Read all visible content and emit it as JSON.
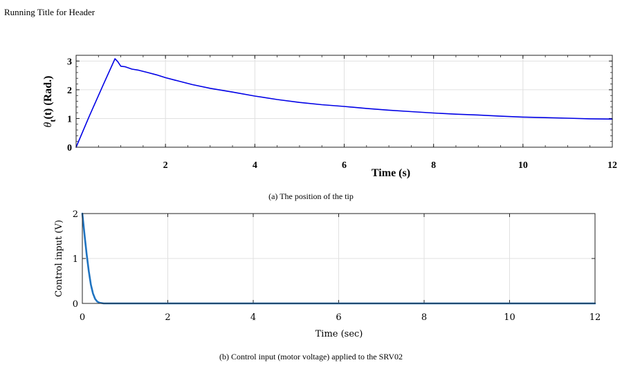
{
  "page": {
    "header": "Running Title for Header",
    "caption_a": "(a) The position of the tip",
    "caption_b": "(b) Control input (motor voltage) applied to the SRV02"
  },
  "colors": {
    "series_a": "#0000e6",
    "series_b": "#1f73c0",
    "grid": "#e0e0e0"
  },
  "chart_data": [
    {
      "type": "line",
      "xlabel": "Time (s)",
      "ylabel_main": "θ",
      "ylabel_sub": "t",
      "ylabel_rest": "(t) (Rad.)",
      "xlim": [
        0,
        12
      ],
      "ylim": [
        0,
        3.2
      ],
      "xticks": [
        2,
        4,
        6,
        8,
        10,
        12
      ],
      "yticks": [
        0,
        1,
        2,
        3
      ],
      "grid": true,
      "series": [
        {
          "x": [
            0,
            0.3,
            0.6,
            0.87,
            0.93,
            1.0,
            1.1,
            1.25,
            1.4,
            1.6,
            1.8,
            2.0,
            2.3,
            2.6,
            3.0,
            3.5,
            4.0,
            4.5,
            5.0,
            5.5,
            6.0,
            6.5,
            7.0,
            7.5,
            8.0,
            8.5,
            9.0,
            9.5,
            10.0,
            10.5,
            11.0,
            11.5,
            12.0
          ],
          "y": [
            0,
            1.1,
            2.15,
            3.08,
            2.98,
            2.82,
            2.8,
            2.72,
            2.68,
            2.6,
            2.52,
            2.42,
            2.3,
            2.18,
            2.05,
            1.92,
            1.78,
            1.66,
            1.56,
            1.48,
            1.42,
            1.35,
            1.29,
            1.24,
            1.19,
            1.15,
            1.12,
            1.08,
            1.05,
            1.03,
            1.01,
            0.99,
            0.98
          ]
        }
      ]
    },
    {
      "type": "line",
      "xlabel": "Time (sec)",
      "ylabel": "Control input (V)",
      "xlim": [
        0,
        12
      ],
      "ylim": [
        0,
        2
      ],
      "xticks": [
        0,
        2,
        4,
        6,
        8,
        10,
        12
      ],
      "yticks": [
        0,
        1,
        2
      ],
      "grid": true,
      "series": [
        {
          "x": [
            0,
            0.03,
            0.06,
            0.1,
            0.15,
            0.2,
            0.25,
            0.3,
            0.35,
            0.4,
            0.5,
            0.6,
            1.0,
            2.0,
            4.0,
            6.0,
            8.0,
            10.0,
            12.0
          ],
          "y": [
            2.0,
            1.72,
            1.45,
            1.1,
            0.72,
            0.42,
            0.22,
            0.1,
            0.04,
            0.015,
            0.0,
            0.0,
            0.0,
            0.0,
            0.0,
            0.0,
            0.0,
            0.0,
            0.0
          ]
        }
      ]
    }
  ]
}
